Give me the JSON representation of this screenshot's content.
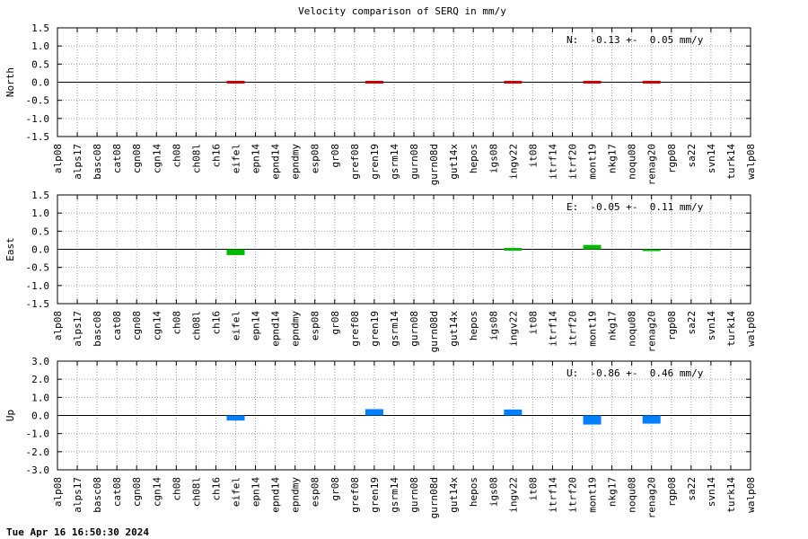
{
  "chart_title": "Velocity comparison of SERQ in mm/y",
  "timestamp": "Tue Apr 16 16:50:30 2024",
  "chart_data": [
    {
      "type": "bar",
      "title": "Velocity comparison of SERQ in mm/y",
      "ylabel": "North",
      "ylim": [
        -1.5,
        1.5
      ],
      "yticks": [
        "1.5",
        "1.0",
        "0.5",
        "0.0",
        "-0.5",
        "-1.0",
        "-1.5"
      ],
      "grid": true,
      "color": "#cc0000",
      "summary": "N:  -0.13 +-  0.05 mm/y",
      "categories": [
        "alp08",
        "alps17",
        "basc08",
        "cat08",
        "cgn08",
        "cgn14",
        "ch08",
        "ch08l",
        "ch16",
        "eifel",
        "epn14",
        "epnd14",
        "epndmy",
        "esp08",
        "gr08",
        "gref08",
        "gren19",
        "gsrm14",
        "gurn08",
        "gurn08d",
        "gut14x",
        "hepos",
        "igs08",
        "ingv22",
        "it08",
        "itrf14",
        "itrf20",
        "mont19",
        "nkg17",
        "noqu08",
        "renag20",
        "rgp08",
        "sa22",
        "svn14",
        "turk14",
        "walp08"
      ],
      "values": [
        null,
        null,
        null,
        null,
        null,
        null,
        null,
        null,
        null,
        0.03,
        null,
        null,
        null,
        null,
        null,
        null,
        -0.02,
        null,
        null,
        null,
        null,
        null,
        null,
        -0.03,
        null,
        null,
        null,
        -0.02,
        null,
        null,
        -0.03,
        null,
        null,
        null,
        null,
        null
      ]
    },
    {
      "type": "bar",
      "ylabel": "East",
      "ylim": [
        -1.5,
        1.5
      ],
      "yticks": [
        "1.5",
        "1.0",
        "0.5",
        "0.0",
        "-0.5",
        "-1.0",
        "-1.5"
      ],
      "grid": true,
      "color": "#00bb00",
      "summary": "E:  -0.05 +-  0.11 mm/y",
      "categories": [
        "alp08",
        "alps17",
        "basc08",
        "cat08",
        "cgn08",
        "cgn14",
        "ch08",
        "ch08l",
        "ch16",
        "eifel",
        "epn14",
        "epnd14",
        "epndmy",
        "esp08",
        "gr08",
        "gref08",
        "gren19",
        "gsrm14",
        "gurn08",
        "gurn08d",
        "gut14x",
        "hepos",
        "igs08",
        "ingv22",
        "it08",
        "itrf14",
        "itrf20",
        "mont19",
        "nkg17",
        "noqu08",
        "renag20",
        "rgp08",
        "sa22",
        "svn14",
        "turk14",
        "walp08"
      ],
      "values": [
        null,
        null,
        null,
        null,
        null,
        null,
        null,
        null,
        null,
        -0.16,
        null,
        null,
        null,
        null,
        null,
        null,
        null,
        null,
        null,
        null,
        null,
        null,
        null,
        -0.02,
        null,
        null,
        null,
        0.12,
        null,
        null,
        -0.05,
        null,
        null,
        null,
        null,
        null
      ]
    },
    {
      "type": "bar",
      "ylabel": "Up",
      "ylim": [
        -3.0,
        3.0
      ],
      "yticks": [
        "3.0",
        "2.0",
        "1.0",
        "0.0",
        "-1.0",
        "-2.0",
        "-3.0"
      ],
      "grid": true,
      "color": "#0080ff",
      "summary": "U:  -0.86 +-  0.46 mm/y",
      "categories": [
        "alp08",
        "alps17",
        "basc08",
        "cat08",
        "cgn08",
        "cgn14",
        "ch08",
        "ch08l",
        "ch16",
        "eifel",
        "epn14",
        "epnd14",
        "epndmy",
        "esp08",
        "gr08",
        "gref08",
        "gren19",
        "gsrm14",
        "gurn08",
        "gurn08d",
        "gut14x",
        "hepos",
        "igs08",
        "ingv22",
        "it08",
        "itrf14",
        "itrf20",
        "mont19",
        "nkg17",
        "noqu08",
        "renag20",
        "rgp08",
        "sa22",
        "svn14",
        "turk14",
        "walp08"
      ],
      "values": [
        null,
        null,
        null,
        null,
        null,
        null,
        null,
        null,
        null,
        -0.28,
        null,
        null,
        null,
        null,
        null,
        null,
        0.35,
        null,
        null,
        null,
        null,
        null,
        null,
        0.33,
        null,
        null,
        null,
        -0.5,
        null,
        null,
        -0.45,
        null,
        null,
        null,
        null,
        null
      ]
    }
  ]
}
